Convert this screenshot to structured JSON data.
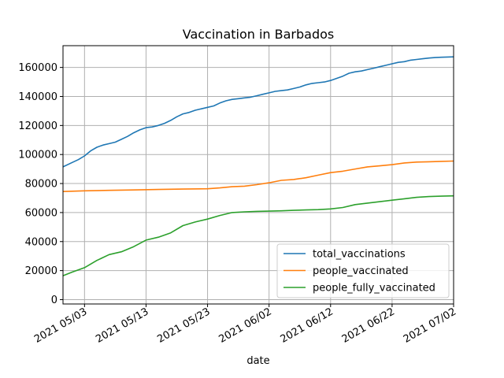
{
  "chart_data": {
    "type": "line",
    "title": "Vaccination in Barbados",
    "xlabel": "date",
    "ylabel": "",
    "x_tick_labels": [
      "2021 05/03",
      "2021 05/13",
      "2021 05/23",
      "2021 06/02",
      "2021 06/12",
      "2021 06/22",
      "2021 07/02"
    ],
    "x_tick_days": [
      4,
      14,
      24,
      34,
      44,
      54,
      64
    ],
    "xlim_days": [
      0.5,
      64
    ],
    "y_tick_values": [
      0,
      20000,
      40000,
      60000,
      80000,
      100000,
      120000,
      140000,
      160000
    ],
    "y_tick_labels": [
      "0",
      "20000",
      "40000",
      "60000",
      "80000",
      "100000",
      "120000",
      "140000",
      "160000"
    ],
    "ylim": [
      -3000,
      175000
    ],
    "grid": true,
    "legend_position": "lower-right",
    "series": [
      {
        "name": "total_vaccinations",
        "color": "#1f77b4",
        "points": [
          [
            0.5,
            91500
          ],
          [
            2,
            94500
          ],
          [
            3,
            96500
          ],
          [
            4,
            99000
          ],
          [
            5,
            102500
          ],
          [
            6,
            105000
          ],
          [
            7,
            106500
          ],
          [
            8,
            107500
          ],
          [
            9,
            108500
          ],
          [
            10,
            110500
          ],
          [
            11,
            112500
          ],
          [
            12,
            115000
          ],
          [
            13,
            117000
          ],
          [
            14,
            118500
          ],
          [
            15,
            119000
          ],
          [
            16,
            120000
          ],
          [
            17,
            121500
          ],
          [
            18,
            123500
          ],
          [
            19,
            126000
          ],
          [
            20,
            128000
          ],
          [
            21,
            129000
          ],
          [
            22,
            130500
          ],
          [
            23,
            131500
          ],
          [
            24,
            132500
          ],
          [
            25,
            133500
          ],
          [
            26,
            135500
          ],
          [
            27,
            137000
          ],
          [
            28,
            138000
          ],
          [
            29,
            138500
          ],
          [
            30,
            139000
          ],
          [
            31,
            139500
          ],
          [
            32,
            140500
          ],
          [
            33,
            141500
          ],
          [
            34,
            142500
          ],
          [
            35,
            143500
          ],
          [
            36,
            144000
          ],
          [
            37,
            144500
          ],
          [
            38,
            145500
          ],
          [
            39,
            146500
          ],
          [
            40,
            148000
          ],
          [
            41,
            149000
          ],
          [
            42,
            149500
          ],
          [
            43,
            150000
          ],
          [
            44,
            151000
          ],
          [
            45,
            152500
          ],
          [
            46,
            154000
          ],
          [
            47,
            156000
          ],
          [
            48,
            157000
          ],
          [
            49,
            157500
          ],
          [
            50,
            158500
          ],
          [
            51,
            159500
          ],
          [
            52,
            160500
          ],
          [
            53,
            161500
          ],
          [
            54,
            162500
          ],
          [
            55,
            163500
          ],
          [
            56,
            164000
          ],
          [
            57,
            165000
          ],
          [
            58,
            165500
          ],
          [
            59,
            166000
          ],
          [
            60,
            166500
          ],
          [
            61,
            166800
          ],
          [
            62,
            167000
          ],
          [
            63,
            167200
          ],
          [
            64,
            167300
          ]
        ]
      },
      {
        "name": "people_vaccinated",
        "color": "#ff7f0e",
        "points": [
          [
            0.5,
            74500
          ],
          [
            4,
            75000
          ],
          [
            8,
            75300
          ],
          [
            12,
            75600
          ],
          [
            16,
            75900
          ],
          [
            20,
            76200
          ],
          [
            24,
            76400
          ],
          [
            26,
            77000
          ],
          [
            28,
            77800
          ],
          [
            30,
            78200
          ],
          [
            32,
            79200
          ],
          [
            34,
            80500
          ],
          [
            36,
            82200
          ],
          [
            38,
            82800
          ],
          [
            40,
            84000
          ],
          [
            42,
            85800
          ],
          [
            44,
            87500
          ],
          [
            46,
            88500
          ],
          [
            48,
            90000
          ],
          [
            50,
            91500
          ],
          [
            52,
            92200
          ],
          [
            54,
            93000
          ],
          [
            56,
            94200
          ],
          [
            58,
            94800
          ],
          [
            60,
            95000
          ],
          [
            62,
            95300
          ],
          [
            64,
            95500
          ]
        ]
      },
      {
        "name": "people_fully_vaccinated",
        "color": "#2ca02c",
        "points": [
          [
            0.5,
            16500
          ],
          [
            2,
            19000
          ],
          [
            4,
            22000
          ],
          [
            6,
            27000
          ],
          [
            8,
            31000
          ],
          [
            10,
            33000
          ],
          [
            12,
            36500
          ],
          [
            14,
            41000
          ],
          [
            16,
            43000
          ],
          [
            18,
            46000
          ],
          [
            20,
            51000
          ],
          [
            22,
            53500
          ],
          [
            24,
            55500
          ],
          [
            26,
            58000
          ],
          [
            28,
            60000
          ],
          [
            30,
            60500
          ],
          [
            32,
            60800
          ],
          [
            34,
            61000
          ],
          [
            36,
            61200
          ],
          [
            38,
            61500
          ],
          [
            40,
            61800
          ],
          [
            42,
            62000
          ],
          [
            44,
            62500
          ],
          [
            46,
            63500
          ],
          [
            48,
            65500
          ],
          [
            50,
            66500
          ],
          [
            52,
            67500
          ],
          [
            54,
            68500
          ],
          [
            56,
            69500
          ],
          [
            58,
            70500
          ],
          [
            60,
            71000
          ],
          [
            62,
            71300
          ],
          [
            64,
            71500
          ]
        ]
      }
    ]
  }
}
